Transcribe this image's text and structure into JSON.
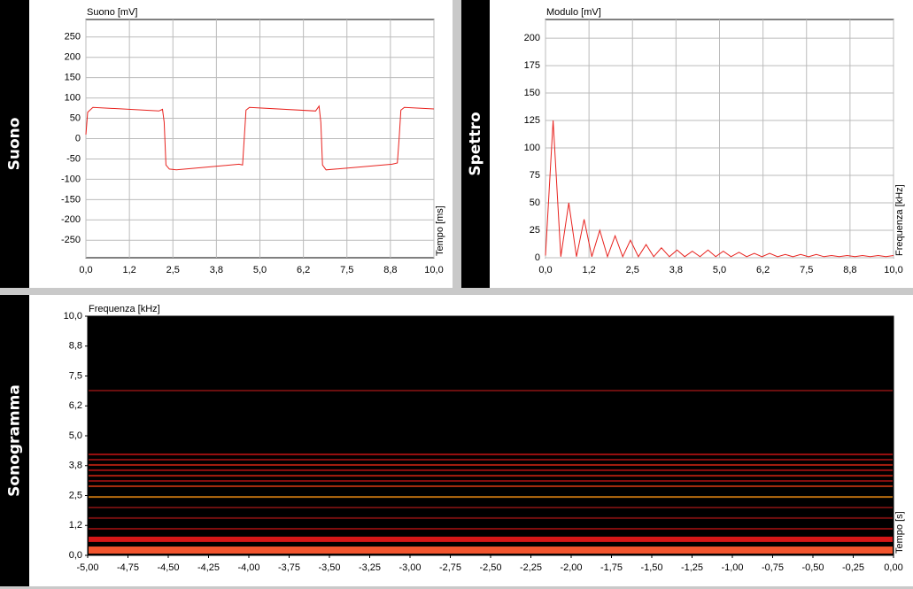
{
  "chart_data": [
    {
      "type": "line",
      "sidebar": "Suono",
      "y_label": "Suono [mV]",
      "x_label": "Tempo [ms]",
      "color": "#e8231f",
      "grid": true,
      "xlim": [
        0,
        10
      ],
      "ylim": [
        -293,
        293
      ],
      "xticks": [
        {
          "value": 0,
          "label": "0,0"
        },
        {
          "value": 1.25,
          "label": "1,2"
        },
        {
          "value": 2.5,
          "label": "2,5"
        },
        {
          "value": 3.75,
          "label": "3,8"
        },
        {
          "value": 5,
          "label": "5,0"
        },
        {
          "value": 6.25,
          "label": "6,2"
        },
        {
          "value": 7.5,
          "label": "7,5"
        },
        {
          "value": 8.75,
          "label": "8,8"
        },
        {
          "value": 10,
          "label": "10,0"
        }
      ],
      "yticks": [
        -250,
        -200,
        -150,
        -100,
        -50,
        0,
        50,
        100,
        150,
        200,
        250
      ],
      "x": [
        0,
        0.05,
        0.2,
        2.1,
        2.2,
        2.25,
        2.3,
        2.4,
        2.6,
        4.4,
        4.5,
        4.55,
        4.6,
        4.7,
        6.6,
        6.7,
        6.75,
        6.8,
        6.9,
        8.8,
        8.95,
        9.0,
        9.05,
        9.15,
        10
      ],
      "values": [
        10,
        65,
        77,
        68,
        72,
        40,
        -65,
        -75,
        -77,
        -63,
        -65,
        0,
        70,
        77,
        68,
        80,
        40,
        -65,
        -77,
        -63,
        -60,
        0,
        70,
        77,
        73
      ]
    },
    {
      "type": "line",
      "sidebar": "Spettro",
      "y_label": "Modulo [mV]",
      "x_label": "Frequenza [kHz]",
      "color": "#e8231f",
      "grid": true,
      "xlim": [
        0,
        10
      ],
      "ylim": [
        0,
        217
      ],
      "xticks": [
        {
          "value": 0,
          "label": "0,0"
        },
        {
          "value": 1.25,
          "label": "1,2"
        },
        {
          "value": 2.5,
          "label": "2,5"
        },
        {
          "value": 3.75,
          "label": "3,8"
        },
        {
          "value": 5,
          "label": "5,0"
        },
        {
          "value": 6.25,
          "label": "6,2"
        },
        {
          "value": 7.5,
          "label": "7,5"
        },
        {
          "value": 8.75,
          "label": "8,8"
        },
        {
          "value": 10,
          "label": "10,0"
        }
      ],
      "yticks": [
        0,
        25,
        50,
        75,
        100,
        125,
        150,
        175,
        200
      ],
      "x": [
        0,
        0.22,
        0.44,
        0.67,
        0.89,
        1.11,
        1.33,
        1.56,
        1.78,
        2.0,
        2.22,
        2.44,
        2.67,
        2.89,
        3.11,
        3.33,
        3.56,
        3.78,
        4.0,
        4.22,
        4.44,
        4.67,
        4.89,
        5.11,
        5.33,
        5.56,
        5.78,
        6.0,
        6.22,
        6.44,
        6.67,
        6.89,
        7.11,
        7.33,
        7.56,
        7.78,
        8.0,
        8.22,
        8.44,
        8.67,
        8.89,
        9.11,
        9.33,
        9.56,
        9.78,
        10.0
      ],
      "values": [
        2,
        125,
        1,
        50,
        1,
        35,
        1,
        25,
        1,
        20,
        1,
        16,
        1,
        12,
        1,
        9,
        1,
        7,
        1,
        6,
        1,
        7,
        1,
        6,
        1,
        5,
        1,
        4,
        1,
        4,
        1,
        3,
        1,
        3,
        1,
        3,
        1,
        2,
        1,
        2,
        1,
        2,
        1,
        2,
        1,
        2
      ]
    },
    {
      "type": "bands",
      "sidebar": "Sonogramma",
      "y_label": "Frequenza [kHz]",
      "x_label": "Tempo [s]",
      "grid": false,
      "xlim": [
        -5,
        0
      ],
      "ylim": [
        0,
        10
      ],
      "xticks": [
        {
          "value": -5,
          "label": "-5,00"
        },
        {
          "value": -4.75,
          "label": "-4,75"
        },
        {
          "value": -4.5,
          "label": "-4,50"
        },
        {
          "value": -4.25,
          "label": "-4,25"
        },
        {
          "value": -4,
          "label": "-4,00"
        },
        {
          "value": -3.75,
          "label": "-3,75"
        },
        {
          "value": -3.5,
          "label": "-3,50"
        },
        {
          "value": -3.25,
          "label": "-3,25"
        },
        {
          "value": -3,
          "label": "-3,00"
        },
        {
          "value": -2.75,
          "label": "-2,75"
        },
        {
          "value": -2.5,
          "label": "-2,50"
        },
        {
          "value": -2.25,
          "label": "-2,25"
        },
        {
          "value": -2,
          "label": "-2,00"
        },
        {
          "value": -1.75,
          "label": "-1,75"
        },
        {
          "value": -1.5,
          "label": "-1,50"
        },
        {
          "value": -1.25,
          "label": "-1,25"
        },
        {
          "value": -1,
          "label": "-1,00"
        },
        {
          "value": -0.75,
          "label": "-0,75"
        },
        {
          "value": -0.5,
          "label": "-0,50"
        },
        {
          "value": -0.25,
          "label": "-0,25"
        },
        {
          "value": 0,
          "label": "0,00"
        }
      ],
      "yticks": [
        {
          "value": 0,
          "label": "0,0"
        },
        {
          "value": 1.25,
          "label": "1,2"
        },
        {
          "value": 2.5,
          "label": "2,5"
        },
        {
          "value": 3.75,
          "label": "3,8"
        },
        {
          "value": 5,
          "label": "5,0"
        },
        {
          "value": 6.25,
          "label": "6,2"
        },
        {
          "value": 7.5,
          "label": "7,5"
        },
        {
          "value": 8.75,
          "label": "8,8"
        },
        {
          "value": 10,
          "label": "10,0"
        }
      ],
      "values": [
        0.22,
        0.67,
        1.11,
        1.56,
        2.0,
        2.44,
        2.89,
        3.11,
        3.33,
        3.56,
        3.78,
        4.0,
        4.22,
        6.89
      ],
      "colors": [
        "#ff5a30",
        "#e01818",
        "#8a1010",
        "#7a1010",
        "#701010",
        "#c07010",
        "#b03010",
        "#8a1010",
        "#b02010",
        "#9a1010",
        "#b02010",
        "#8a1010",
        "#a01010",
        "#701010"
      ]
    }
  ]
}
